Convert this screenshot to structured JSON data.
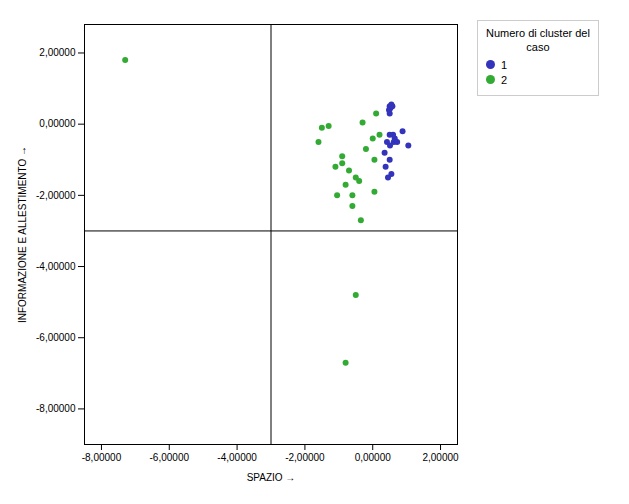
{
  "chart_data": {
    "type": "scatter",
    "title": "",
    "xlabel": "SPAZIO",
    "ylabel": "INFORMAZIONE E ALLESTIMENTO",
    "xlim": [
      -8.5,
      2.5
    ],
    "ylim": [
      -9.0,
      2.8
    ],
    "xticks": [
      {
        "value": -8,
        "label": "-8,00000"
      },
      {
        "value": -6,
        "label": "-6,00000"
      },
      {
        "value": -4,
        "label": "-4,00000"
      },
      {
        "value": -2,
        "label": "-2,00000"
      },
      {
        "value": 0,
        "label": "0,00000"
      },
      {
        "value": 2,
        "label": "2,00000"
      }
    ],
    "yticks": [
      {
        "value": -8,
        "label": "-8,00000"
      },
      {
        "value": -6,
        "label": "-6,00000"
      },
      {
        "value": -4,
        "label": "-4,00000"
      },
      {
        "value": -2,
        "label": "-2,00000"
      },
      {
        "value": 0,
        "label": "0,00000"
      },
      {
        "value": 2,
        "label": "2,00000"
      }
    ],
    "hline": -3.0,
    "vline": -3.0,
    "grid": false,
    "legend": "right",
    "legend_title": "Numero di cluster del\ncaso",
    "series": [
      {
        "name": "1",
        "color": "#3333bb",
        "marker": "circle",
        "x": [
          0.5,
          0.55,
          0.58,
          0.48,
          0.52,
          0.56,
          0.42,
          0.5,
          0.62,
          0.51,
          0.35,
          0.65,
          0.5,
          0.38,
          0.55,
          0.72,
          0.6,
          0.45,
          0.5,
          1.05,
          0.88
        ],
        "y": [
          0.5,
          0.55,
          0.5,
          0.4,
          0.45,
          0.5,
          -0.5,
          -0.3,
          -0.5,
          -0.6,
          -0.8,
          -0.4,
          -1.0,
          -1.2,
          -1.4,
          -0.5,
          -0.3,
          -1.5,
          0.3,
          -0.6,
          -0.2
        ]
      },
      {
        "name": "2",
        "color": "#33aa33",
        "marker": "circle",
        "x": [
          -7.3,
          -1.6,
          -1.5,
          -1.3,
          -0.9,
          -0.7,
          -1.05,
          -0.5,
          -0.4,
          0.0,
          0.2,
          0.1,
          -0.2,
          -0.6,
          -0.8,
          -1.1,
          -0.9,
          -0.35,
          0.05,
          -0.5,
          -0.8,
          -0.3,
          -0.6,
          0.05
        ],
        "y": [
          1.8,
          -0.5,
          -0.1,
          -0.05,
          -1.1,
          -1.3,
          -2.0,
          -1.5,
          -1.6,
          -0.4,
          -0.3,
          0.3,
          -0.7,
          -2.3,
          -1.7,
          -1.2,
          -0.9,
          -2.7,
          -1.9,
          -4.8,
          -6.7,
          0.05,
          -2.0,
          -1.0
        ]
      }
    ]
  }
}
